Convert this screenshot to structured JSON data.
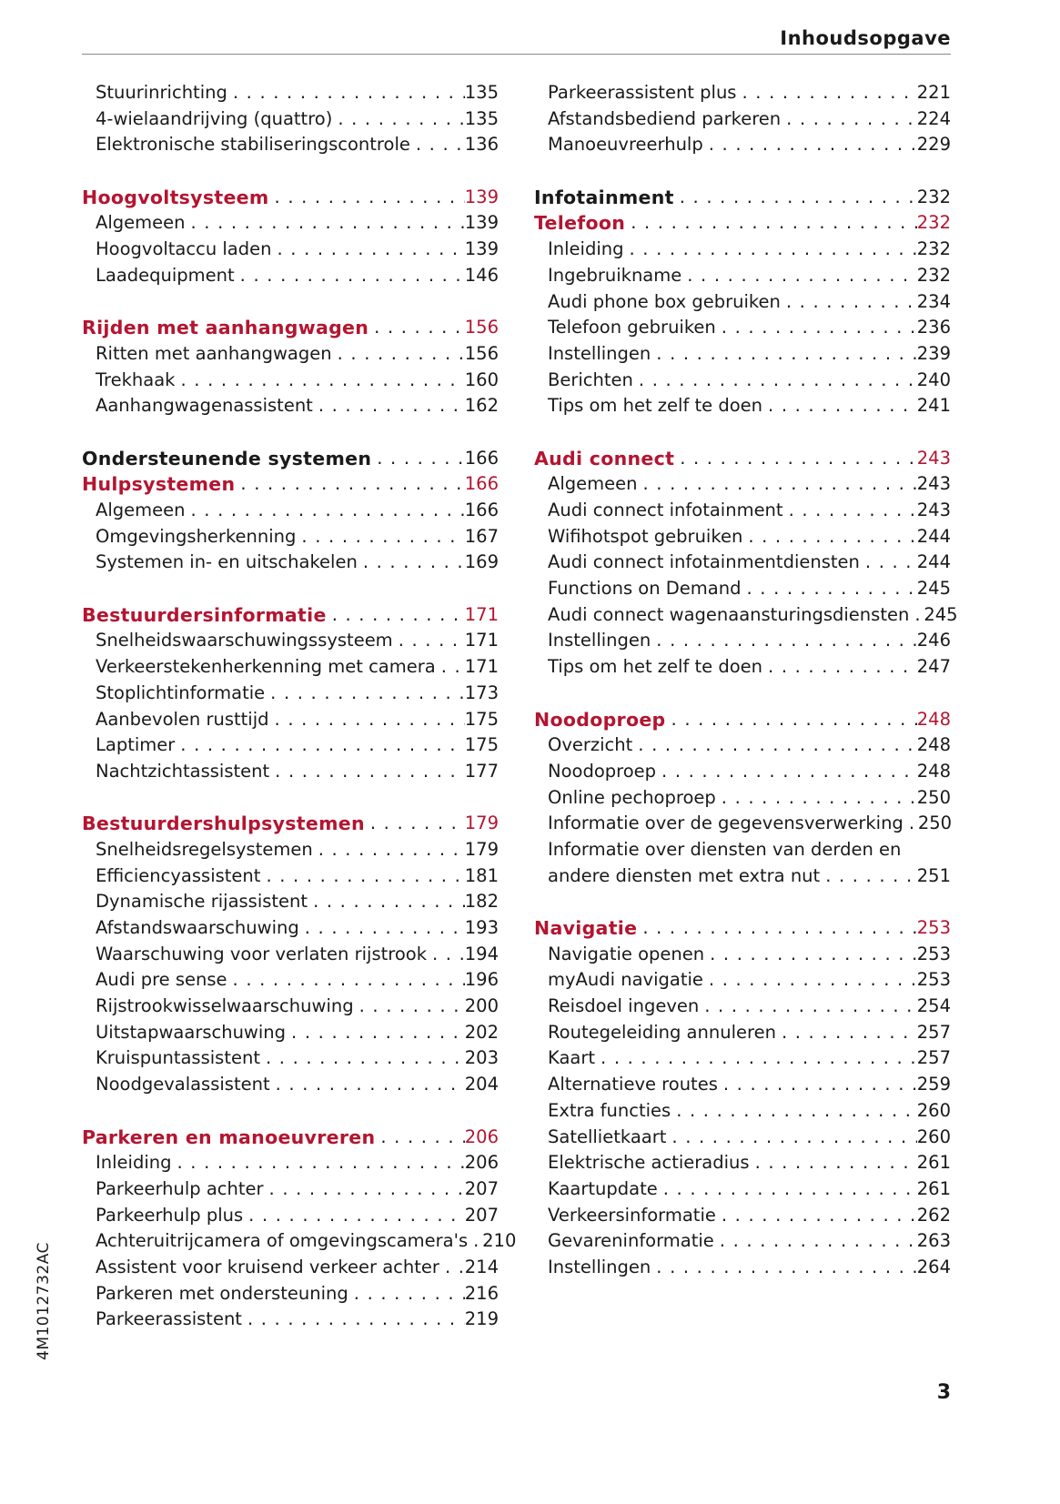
{
  "header": {
    "title": "Inhoudsopgave"
  },
  "footer": {
    "page_number": "3",
    "doc_code": "4M1012732AC"
  },
  "colors": {
    "accent_red": "#b31530",
    "text": "#1a1a1a"
  },
  "columns": [
    {
      "rows": [
        {
          "label": "Stuurinrichting",
          "page": "135",
          "style": "sub"
        },
        {
          "label": "4-wielaandrijving (quattro)",
          "page": "135",
          "style": "sub"
        },
        {
          "label": "Elektronische stabiliseringscontrole",
          "page": "136",
          "style": "sub"
        },
        {
          "blank": true
        },
        {
          "label": "Hoogvoltsysteem",
          "page": "139",
          "style": "red"
        },
        {
          "label": "Algemeen",
          "page": "139",
          "style": "sub"
        },
        {
          "label": "Hoogvoltaccu laden",
          "page": "139",
          "style": "sub"
        },
        {
          "label": "Laadequipment",
          "page": "146",
          "style": "sub"
        },
        {
          "blank": true
        },
        {
          "label": "Rijden met aanhangwagen",
          "page": "156",
          "style": "red"
        },
        {
          "label": "Ritten met aanhangwagen",
          "page": "156",
          "style": "sub"
        },
        {
          "label": "Trekhaak",
          "page": "160",
          "style": "sub"
        },
        {
          "label": "Aanhangwagenassistent",
          "page": "162",
          "style": "sub"
        },
        {
          "blank": true
        },
        {
          "label": "Ondersteunende systemen",
          "page": "166",
          "style": "bold"
        },
        {
          "label": "Hulpsystemen",
          "page": "166",
          "style": "red"
        },
        {
          "label": "Algemeen",
          "page": "166",
          "style": "sub"
        },
        {
          "label": "Omgevingsherkenning",
          "page": "167",
          "style": "sub"
        },
        {
          "label": "Systemen in- en uitschakelen",
          "page": "169",
          "style": "sub"
        },
        {
          "blank": true
        },
        {
          "label": "Bestuurdersinformatie",
          "page": "171",
          "style": "red"
        },
        {
          "label": "Snelheidswaarschuwingssysteem",
          "page": "171",
          "style": "sub"
        },
        {
          "label": "Verkeerstekenherkenning met camera",
          "page": "171",
          "style": "sub"
        },
        {
          "label": "Stoplichtinformatie",
          "page": "173",
          "style": "sub"
        },
        {
          "label": "Aanbevolen rusttijd",
          "page": "175",
          "style": "sub"
        },
        {
          "label": "Laptimer",
          "page": "175",
          "style": "sub"
        },
        {
          "label": "Nachtzichtassistent",
          "page": "177",
          "style": "sub"
        },
        {
          "blank": true
        },
        {
          "label": "Bestuurdershulpsystemen",
          "page": "179",
          "style": "red"
        },
        {
          "label": "Snelheidsregelsystemen",
          "page": "179",
          "style": "sub"
        },
        {
          "label": "Efficiencyassistent",
          "page": "181",
          "style": "sub"
        },
        {
          "label": "Dynamische rijassistent",
          "page": "182",
          "style": "sub"
        },
        {
          "label": "Afstandswaarschuwing",
          "page": "193",
          "style": "sub"
        },
        {
          "label": "Waarschuwing voor verlaten rijstrook",
          "page": "194",
          "style": "sub"
        },
        {
          "label": "Audi pre sense",
          "page": "196",
          "style": "sub"
        },
        {
          "label": "Rijstrookwisselwaarschuwing",
          "page": "200",
          "style": "sub"
        },
        {
          "label": "Uitstapwaarschuwing",
          "page": "202",
          "style": "sub"
        },
        {
          "label": "Kruispuntassistent",
          "page": "203",
          "style": "sub"
        },
        {
          "label": "Noodgevalassistent",
          "page": "204",
          "style": "sub"
        },
        {
          "blank": true
        },
        {
          "label": "Parkeren en manoeuvreren",
          "page": "206",
          "style": "red"
        },
        {
          "label": "Inleiding",
          "page": "206",
          "style": "sub"
        },
        {
          "label": "Parkeerhulp achter",
          "page": "207",
          "style": "sub"
        },
        {
          "label": "Parkeerhulp plus",
          "page": "207",
          "style": "sub"
        },
        {
          "label": "Achteruitrijcamera of omgevingscamera's",
          "page": "210",
          "style": "sub"
        },
        {
          "label": "Assistent voor kruisend verkeer achter",
          "page": "214",
          "style": "sub"
        },
        {
          "label": "Parkeren met ondersteuning",
          "page": "216",
          "style": "sub"
        },
        {
          "label": "Parkeerassistent",
          "page": "219",
          "style": "sub"
        }
      ]
    },
    {
      "rows": [
        {
          "label": "Parkeerassistent plus",
          "page": "221",
          "style": "sub"
        },
        {
          "label": "Afstandsbediend parkeren",
          "page": "224",
          "style": "sub"
        },
        {
          "label": "Manoeuvreerhulp",
          "page": "229",
          "style": "sub"
        },
        {
          "blank": true
        },
        {
          "label": "Infotainment",
          "page": "232",
          "style": "bold"
        },
        {
          "label": "Telefoon",
          "page": "232",
          "style": "red"
        },
        {
          "label": "Inleiding",
          "page": "232",
          "style": "sub"
        },
        {
          "label": "Ingebruikname",
          "page": "232",
          "style": "sub"
        },
        {
          "label": "Audi phone box gebruiken",
          "page": "234",
          "style": "sub"
        },
        {
          "label": "Telefoon gebruiken",
          "page": "236",
          "style": "sub"
        },
        {
          "label": "Instellingen",
          "page": "239",
          "style": "sub"
        },
        {
          "label": "Berichten",
          "page": "240",
          "style": "sub"
        },
        {
          "label": "Tips om het zelf te doen",
          "page": "241",
          "style": "sub"
        },
        {
          "blank": true
        },
        {
          "label": "Audi connect",
          "page": "243",
          "style": "red"
        },
        {
          "label": "Algemeen",
          "page": "243",
          "style": "sub"
        },
        {
          "label": "Audi connect infotainment",
          "page": "243",
          "style": "sub"
        },
        {
          "label": "Wifihotspot gebruiken",
          "page": "244",
          "style": "sub"
        },
        {
          "label": "Audi connect infotainmentdiensten",
          "page": "244",
          "style": "sub"
        },
        {
          "label": "Functions on Demand",
          "page": "245",
          "style": "sub"
        },
        {
          "label": "Audi connect wagenaansturingsdiensten",
          "page": "245",
          "style": "sub"
        },
        {
          "label": "Instellingen",
          "page": "246",
          "style": "sub"
        },
        {
          "label": "Tips om het zelf te doen",
          "page": "247",
          "style": "sub"
        },
        {
          "blank": true
        },
        {
          "label": "Noodoproep",
          "page": "248",
          "style": "red"
        },
        {
          "label": "Overzicht",
          "page": "248",
          "style": "sub"
        },
        {
          "label": "Noodoproep",
          "page": "248",
          "style": "sub"
        },
        {
          "label": "Online pechoproep",
          "page": "250",
          "style": "sub"
        },
        {
          "label": "Informatie over de gegevensverwerking",
          "page": "250",
          "style": "sub"
        },
        {
          "label": "Informatie over diensten van derden en",
          "page": "",
          "style": "sub",
          "nodots": true
        },
        {
          "label": "andere diensten met extra nut",
          "page": "251",
          "style": "sub"
        },
        {
          "blank": true
        },
        {
          "label": "Navigatie",
          "page": "253",
          "style": "red"
        },
        {
          "label": "Navigatie openen",
          "page": "253",
          "style": "sub"
        },
        {
          "label": "myAudi navigatie",
          "page": "253",
          "style": "sub"
        },
        {
          "label": "Reisdoel ingeven",
          "page": "254",
          "style": "sub"
        },
        {
          "label": "Routegeleiding annuleren",
          "page": "257",
          "style": "sub"
        },
        {
          "label": "Kaart",
          "page": "257",
          "style": "sub"
        },
        {
          "label": "Alternatieve routes",
          "page": "259",
          "style": "sub"
        },
        {
          "label": "Extra functies",
          "page": "260",
          "style": "sub"
        },
        {
          "label": "Satellietkaart",
          "page": "260",
          "style": "sub"
        },
        {
          "label": "Elektrische actieradius",
          "page": "261",
          "style": "sub"
        },
        {
          "label": "Kaartupdate",
          "page": "261",
          "style": "sub"
        },
        {
          "label": "Verkeersinformatie",
          "page": "262",
          "style": "sub"
        },
        {
          "label": "Gevareninformatie",
          "page": "263",
          "style": "sub"
        },
        {
          "label": "Instellingen",
          "page": "264",
          "style": "sub"
        }
      ]
    }
  ]
}
